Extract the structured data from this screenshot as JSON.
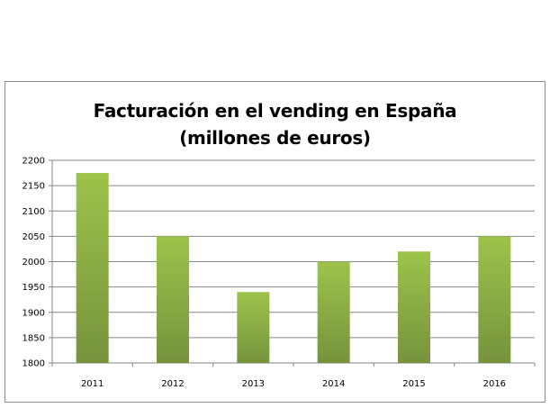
{
  "chart_data": {
    "type": "bar",
    "title": "Facturación en el vending en España",
    "subtitle": "(millones de euros)",
    "categories": [
      "2011",
      "2012",
      "2013",
      "2014",
      "2015",
      "2016"
    ],
    "values": [
      2175,
      2050,
      1940,
      2000,
      2020,
      2050
    ],
    "ylim": [
      1800,
      2200
    ],
    "yticks": [
      1800,
      1850,
      1900,
      1950,
      2000,
      2050,
      2100,
      2150,
      2200
    ],
    "grid": true,
    "legend": "none",
    "colors": {
      "bar_top": "#9dc34b",
      "bar_bottom": "#76933c",
      "grid": "#868686"
    }
  }
}
